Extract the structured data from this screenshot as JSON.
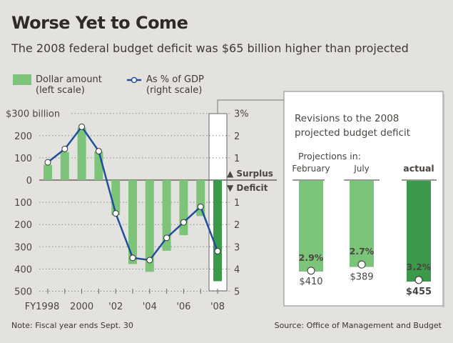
{
  "title": "Worse Yet to Come",
  "subtitle": "The 2008 federal budget deficit was $65 billion higher than projected",
  "legend": {
    "bars_label": "Dollar amount",
    "bars_sub": "(left scale)",
    "line_label": "As % of GDP",
    "line_sub": "(right scale)"
  },
  "note": "Note: Fiscal year ends Sept. 30",
  "source": "Source: Office of Management and Budget",
  "colors": {
    "bar": "#7cc47a",
    "bar_highlight": "#3a9a4a",
    "line": "#1f4f9c",
    "background": "#e3e2df"
  },
  "chart_data": [
    {
      "type": "bar+line",
      "categories": [
        "FY1998",
        "1999",
        "2000",
        "2001",
        "2002",
        "2003",
        "2004",
        "2005",
        "2006",
        "2007",
        "2008"
      ],
      "x_tick_labels": [
        "FY1998",
        "",
        "2000",
        "",
        "'02",
        "",
        "'04",
        "",
        "'06",
        "",
        "'08"
      ],
      "series": [
        {
          "name": "Dollar amount",
          "axis": "left",
          "type": "bar",
          "values": [
            69,
            126,
            236,
            128,
            -158,
            -378,
            -413,
            -318,
            -248,
            -162,
            -455
          ]
        },
        {
          "name": "As % of GDP",
          "axis": "right",
          "type": "line",
          "values": [
            0.8,
            1.4,
            2.4,
            1.3,
            -1.5,
            -3.5,
            -3.6,
            -2.6,
            -1.9,
            -1.2,
            -3.2
          ]
        }
      ],
      "left_axis": {
        "ylim": [
          -500,
          300
        ],
        "tick_labels": [
          "$300 billion",
          "200",
          "100",
          "0",
          "100",
          "200",
          "300",
          "400",
          "500"
        ]
      },
      "right_axis": {
        "ylim": [
          -5,
          3
        ],
        "tick_labels": [
          "3%",
          "2",
          "1",
          "1",
          "2",
          "3",
          "4",
          "5"
        ],
        "surplus_label": "▲ Surplus",
        "deficit_label": "▼ Deficit"
      },
      "grid": true,
      "highlight": "2008"
    },
    {
      "type": "bar",
      "title": "Revisions to the 2008 projected budget deficit",
      "group_label": "Projections in:",
      "categories": [
        "February",
        "July",
        "actual"
      ],
      "values": [
        410,
        389,
        455
      ],
      "value_labels": [
        "$410",
        "$389",
        "$455"
      ],
      "pct_labels": [
        "2.9%",
        "2.7%",
        "3.2%"
      ],
      "pct_values": [
        2.9,
        2.7,
        3.2
      ]
    }
  ]
}
